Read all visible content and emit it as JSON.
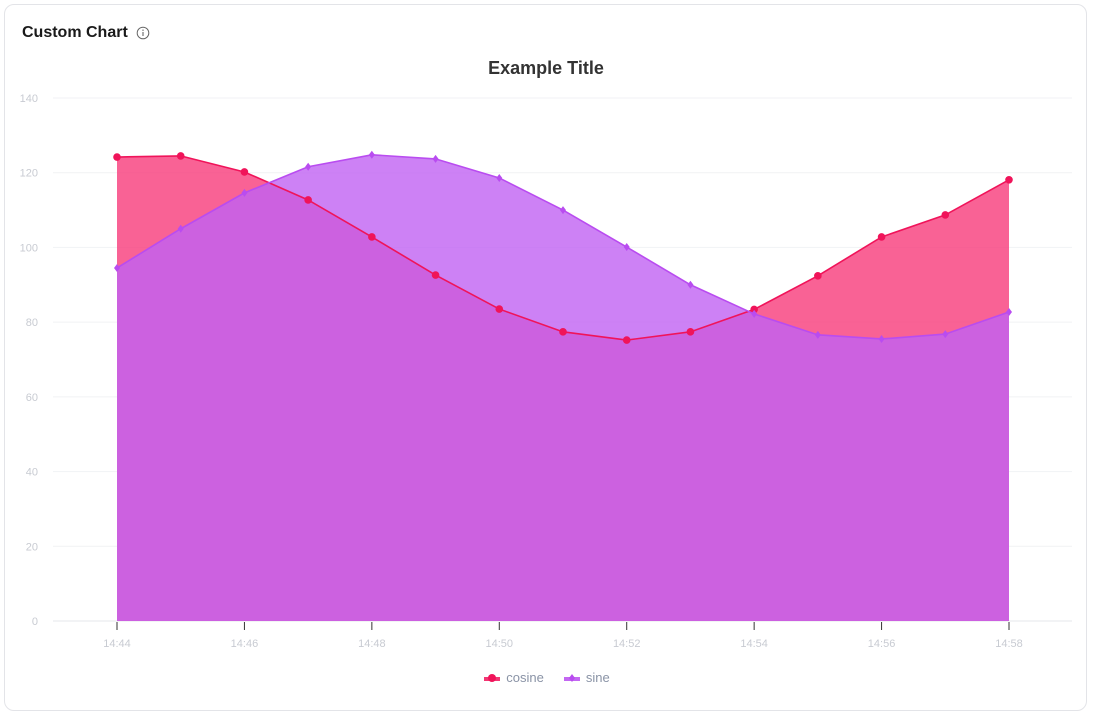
{
  "card": {
    "title": "Custom Chart",
    "info_icon": "info-circle-icon"
  },
  "chart_data": {
    "type": "area",
    "title": "Example Title",
    "xlabel": "",
    "ylabel": "",
    "x": [
      "14:44",
      "14:45",
      "14:46",
      "14:47",
      "14:48",
      "14:49",
      "14:50",
      "14:51",
      "14:52",
      "14:53",
      "14:54",
      "14:55",
      "14:56",
      "14:57",
      "14:58"
    ],
    "x_tick_labels": [
      "14:44",
      "14:46",
      "14:48",
      "14:50",
      "14:52",
      "14:54",
      "14:56",
      "14:58"
    ],
    "y_ticks": [
      0,
      20,
      40,
      60,
      80,
      100,
      120,
      140
    ],
    "ylim": [
      0,
      140
    ],
    "grid": true,
    "legend_position": "bottom",
    "series": [
      {
        "name": "cosine",
        "color": "#f0145a",
        "fill": "#f73b7a",
        "marker": "circle",
        "values": [
          124.2,
          124.5,
          120.2,
          112.7,
          102.8,
          92.6,
          83.5,
          77.4,
          75.2,
          77.4,
          83.4,
          92.4,
          102.8,
          108.7,
          118.1
        ]
      },
      {
        "name": "sine",
        "color": "#b94cf0",
        "fill": "#c061f2",
        "marker": "diamond",
        "values": [
          94.5,
          105.0,
          114.6,
          121.6,
          124.8,
          123.7,
          118.6,
          110.0,
          100.1,
          90.0,
          82.2,
          76.6,
          75.5,
          76.8,
          82.7
        ]
      }
    ]
  },
  "legend": [
    {
      "label": "cosine",
      "color": "#f0145a"
    },
    {
      "label": "sine",
      "color": "#b94cf0"
    }
  ]
}
